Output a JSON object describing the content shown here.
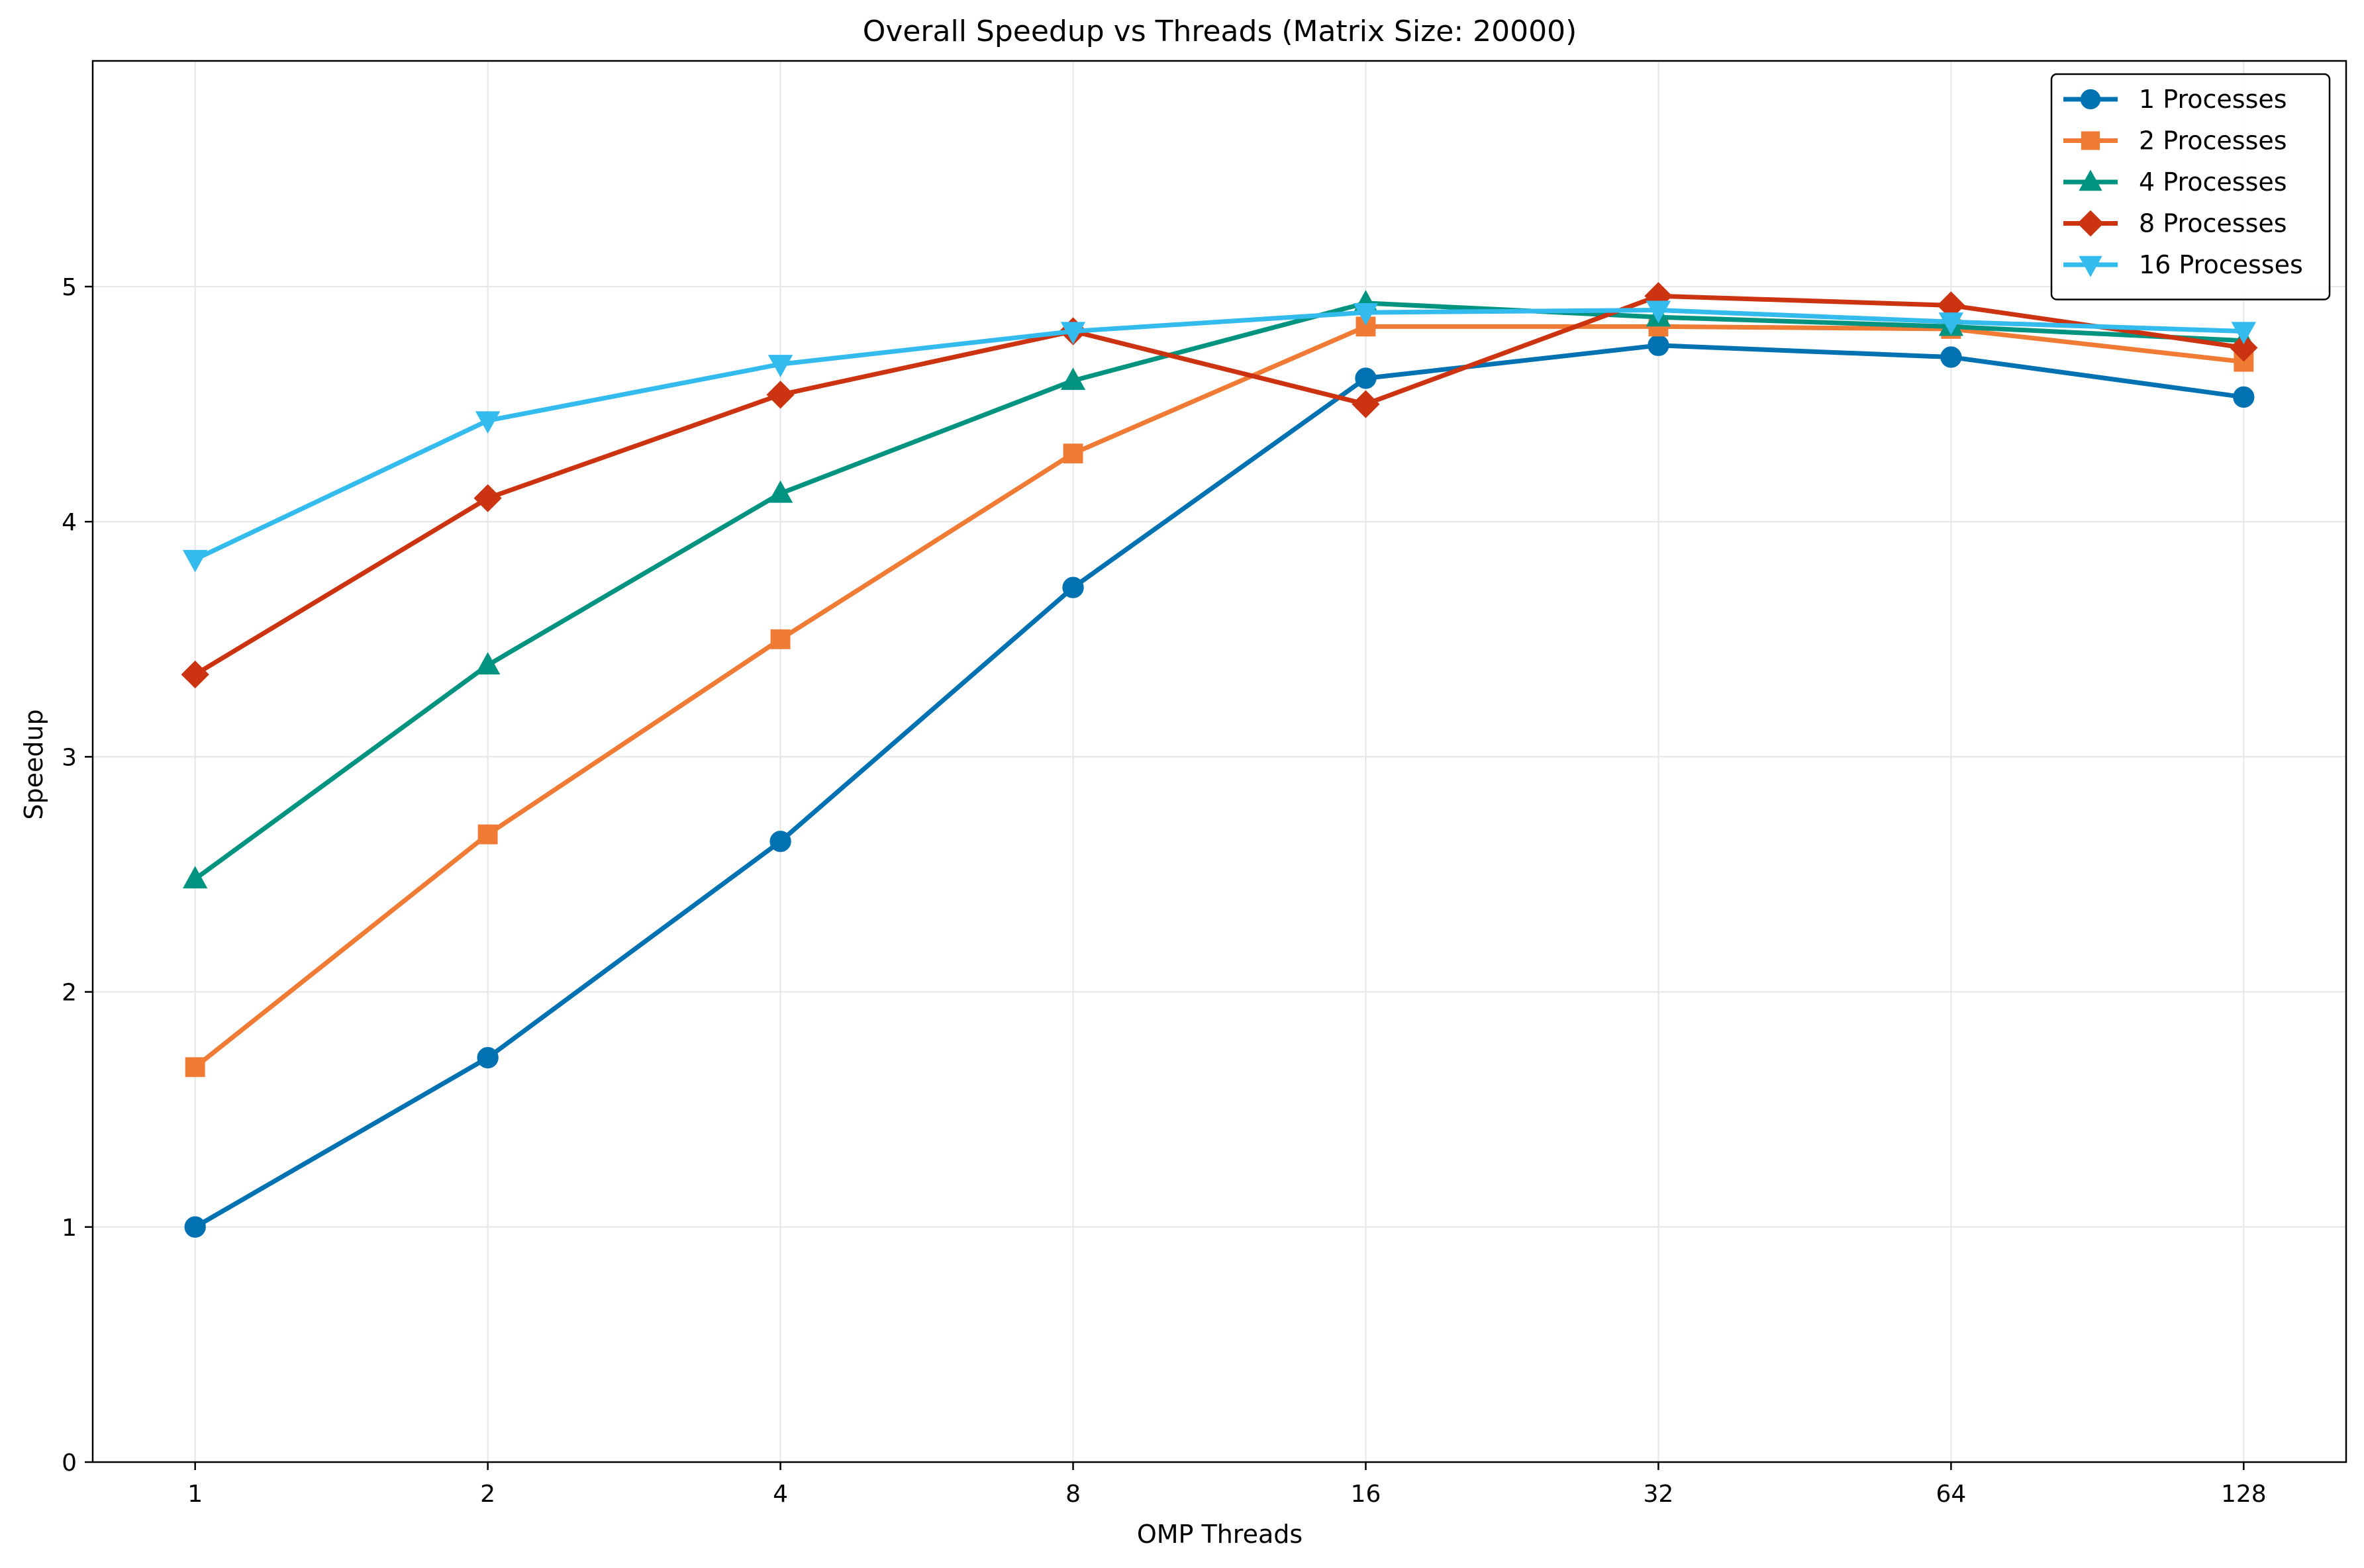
{
  "chart_data": {
    "type": "line",
    "title": "Overall Speedup vs Threads (Matrix Size: 20000)",
    "xlabel": "OMP Threads",
    "ylabel": "Speedup",
    "x_scale": "log2",
    "x": [
      1,
      2,
      4,
      8,
      16,
      32,
      64,
      128
    ],
    "x_tick_labels": [
      "1",
      "2",
      "4",
      "8",
      "16",
      "32",
      "64",
      "128"
    ],
    "ylim": [
      0,
      5.96
    ],
    "y_ticks": [
      0,
      1,
      2,
      3,
      4,
      5
    ],
    "y_tick_labels": [
      "0",
      "1",
      "2",
      "3",
      "4",
      "5"
    ],
    "grid": true,
    "legend_position": "top-right",
    "series": [
      {
        "name": "1 Processes",
        "marker": "circle",
        "color": "#0072B2",
        "values": [
          1.0,
          1.72,
          2.64,
          3.72,
          4.61,
          4.75,
          4.7,
          4.53
        ]
      },
      {
        "name": "2 Processes",
        "marker": "square",
        "color": "#F07B35",
        "values": [
          1.68,
          2.67,
          3.5,
          4.29,
          4.83,
          4.83,
          4.82,
          4.68
        ]
      },
      {
        "name": "4 Processes",
        "marker": "triangle-up",
        "color": "#009480",
        "values": [
          2.48,
          3.39,
          4.12,
          4.6,
          4.93,
          4.87,
          4.83,
          4.77
        ]
      },
      {
        "name": "8 Processes",
        "marker": "diamond",
        "color": "#CC3311",
        "values": [
          3.35,
          4.1,
          4.54,
          4.81,
          4.5,
          4.96,
          4.92,
          4.74
        ]
      },
      {
        "name": "16 Processes",
        "marker": "triangle-down",
        "color": "#33BBEE",
        "values": [
          3.84,
          4.43,
          4.67,
          4.81,
          4.89,
          4.9,
          4.85,
          4.81
        ]
      }
    ]
  }
}
